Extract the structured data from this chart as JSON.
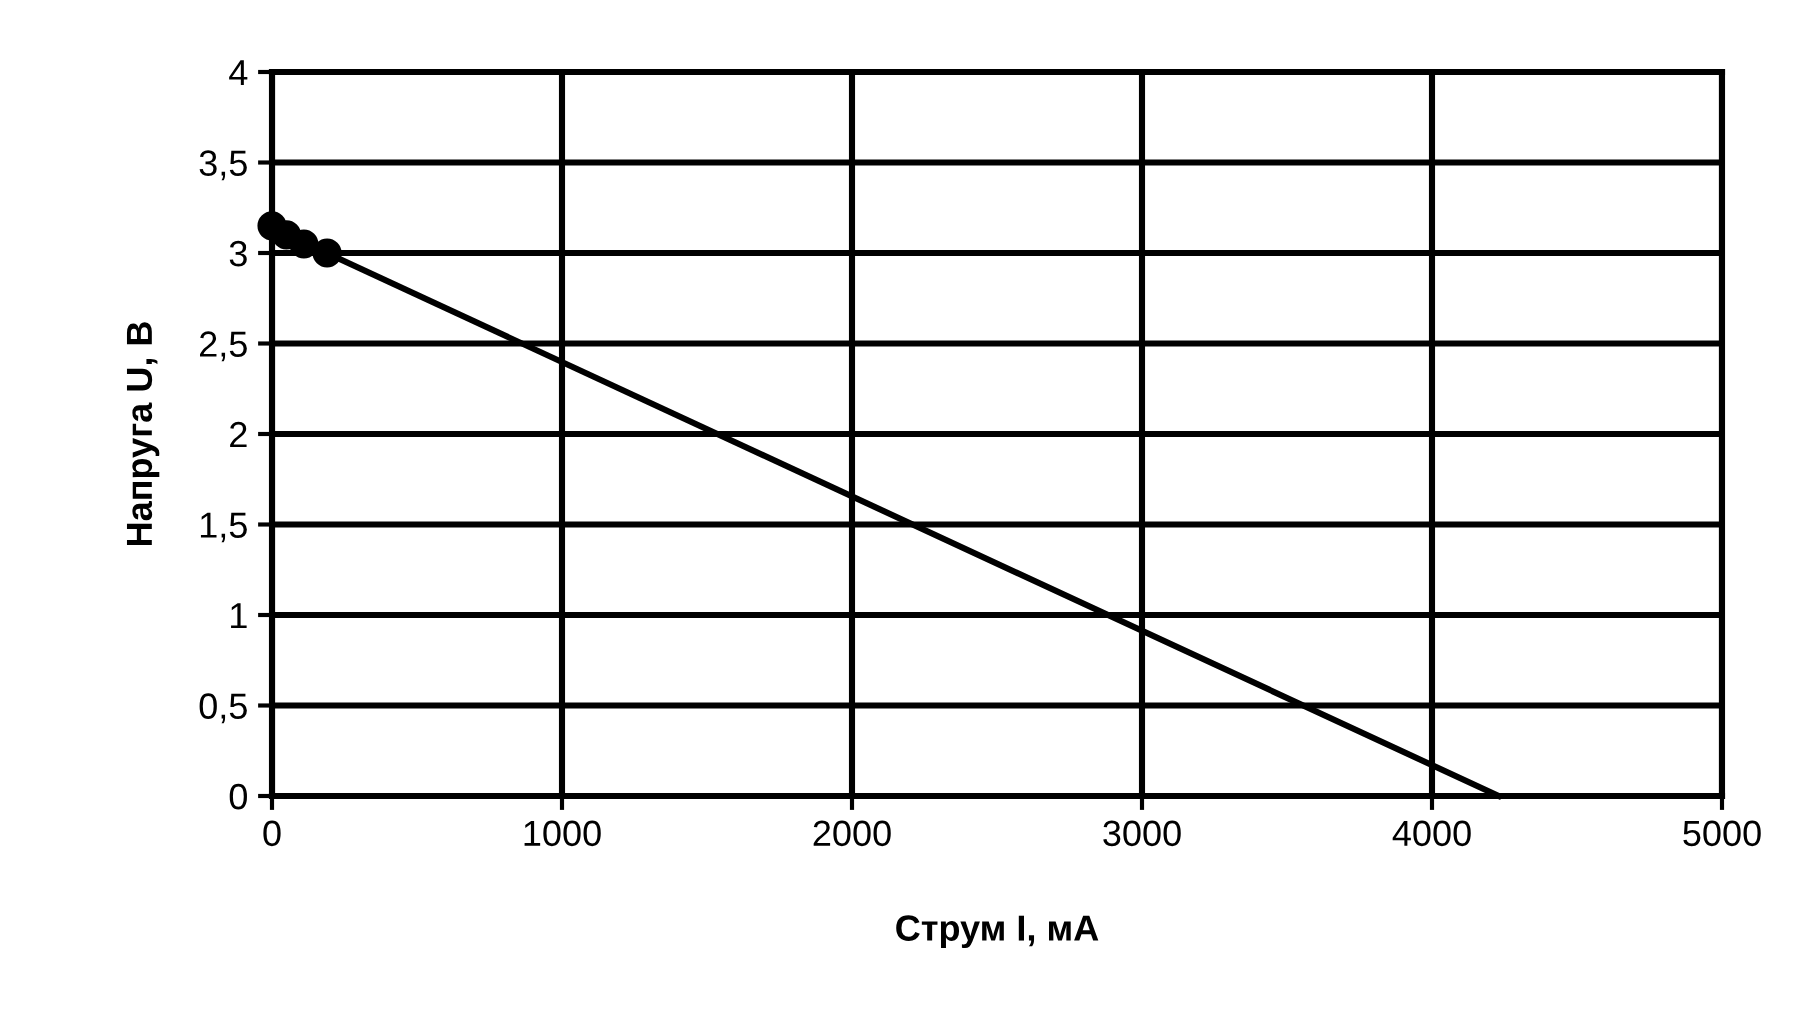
{
  "chart_data": {
    "type": "line",
    "xlabel": "Струм I, мА",
    "ylabel": "Напруга U, В",
    "series": [
      {
        "type": "scatter",
        "color": "#000000",
        "marker": "circle",
        "x": [
          0,
          50,
          110,
          190
        ],
        "values": [
          3.15,
          3.1,
          3.05,
          3.0
        ]
      },
      {
        "color": "#000000",
        "marker": "none",
        "x": [
          0,
          4230
        ],
        "values": [
          3.14,
          0
        ]
      }
    ],
    "xlim": [
      0,
      5000
    ],
    "xticks": [
      0,
      1000,
      2000,
      3000,
      4000,
      5000
    ],
    "ylim": [
      0,
      4
    ],
    "yticks": [
      0,
      {
        "value": 0.5,
        "label": "0,5"
      },
      1,
      {
        "value": 1.5,
        "label": "1,5"
      },
      2,
      {
        "value": 2.5,
        "label": "2,5"
      },
      3,
      {
        "value": 3.5,
        "label": "3,5"
      },
      4
    ],
    "grid": true,
    "legend": false
  }
}
